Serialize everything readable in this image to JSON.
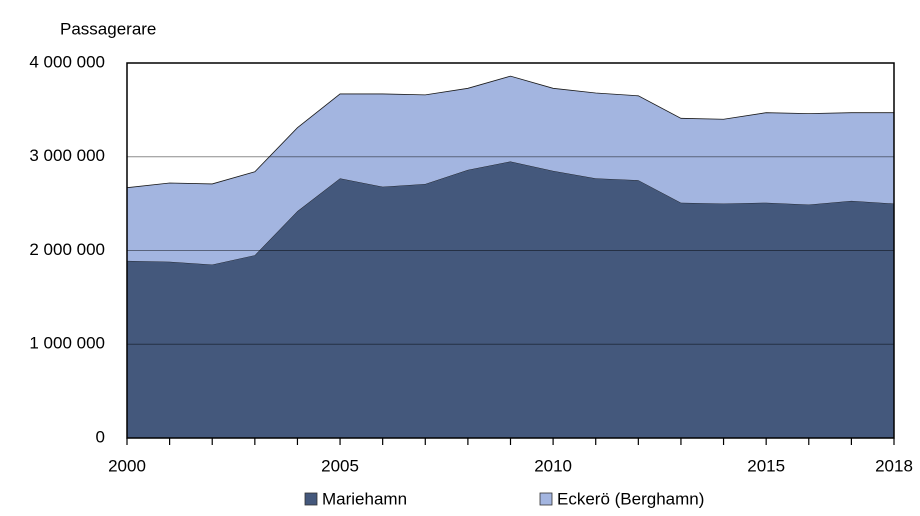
{
  "chart_data": {
    "type": "stacked_area",
    "y_label": "Passagerare",
    "x": [
      2000,
      2001,
      2002,
      2003,
      2004,
      2005,
      2006,
      2007,
      2008,
      2009,
      2010,
      2011,
      2012,
      2013,
      2014,
      2015,
      2016,
      2017,
      2018
    ],
    "series": [
      {
        "name": "Mariehamn",
        "color": "#44587c",
        "values": [
          1890000,
          1880000,
          1850000,
          1950000,
          2420000,
          2770000,
          2680000,
          2710000,
          2860000,
          2950000,
          2850000,
          2770000,
          2750000,
          2510000,
          2500000,
          2510000,
          2490000,
          2530000,
          2500000
        ]
      },
      {
        "name": "Eckerö (Berghamn)",
        "color": "#a3b5e0",
        "values": [
          780000,
          840000,
          860000,
          890000,
          890000,
          900000,
          990000,
          950000,
          870000,
          910000,
          880000,
          910000,
          900000,
          900000,
          900000,
          960000,
          970000,
          940000,
          970000
        ]
      }
    ],
    "xlim": [
      2000,
      2018
    ],
    "xticks": [
      2000,
      2005,
      2010,
      2015,
      2018
    ],
    "ylim": [
      0,
      4000000
    ],
    "yticks": [
      0,
      {
        "value": 1000000,
        "label": "1 000 000"
      },
      {
        "value": 2000000,
        "label": "2 000 000"
      },
      {
        "value": 3000000,
        "label": "3 000 000"
      },
      {
        "value": 4000000,
        "label": "4 000 000"
      }
    ],
    "grid": true,
    "legend": "bottom"
  }
}
